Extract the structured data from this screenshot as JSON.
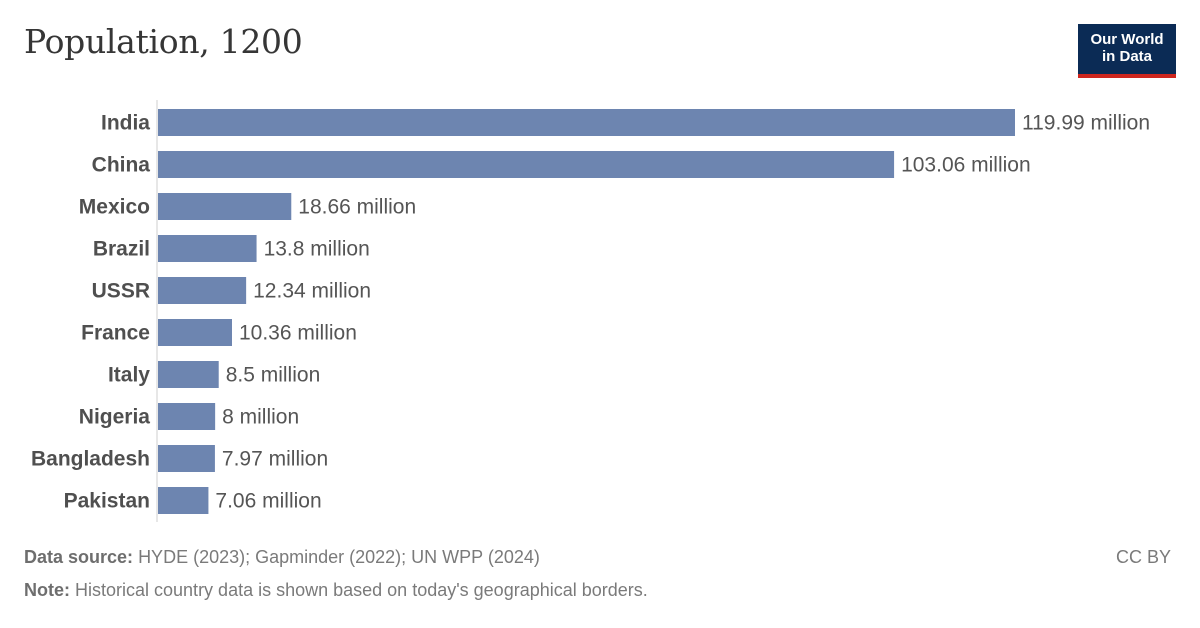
{
  "header": {
    "title": "Population, 1200"
  },
  "logo": {
    "line1": "Our World",
    "line2": "in Data"
  },
  "footer": {
    "source_label": "Data source:",
    "source_text": "HYDE (2023); Gapminder (2022); UN WPP (2024)",
    "note_label": "Note:",
    "note_text": "Historical country data is shown based on today's geographical borders.",
    "license": "CC BY"
  },
  "colors": {
    "bar": "#6d85b0",
    "logo_bg": "#0b2b55",
    "logo_accent": "#ce261e"
  },
  "chart_data": {
    "type": "bar",
    "orientation": "horizontal",
    "title": "Population, 1200",
    "categories": [
      "India",
      "China",
      "Mexico",
      "Brazil",
      "USSR",
      "France",
      "Italy",
      "Nigeria",
      "Bangladesh",
      "Pakistan"
    ],
    "values": [
      119.99,
      103.06,
      18.66,
      13.8,
      12.34,
      10.36,
      8.5,
      8,
      7.97,
      7.06
    ],
    "value_labels": [
      "119.99 million",
      "103.06 million",
      "18.66 million",
      "13.8 million",
      "12.34 million",
      "10.36 million",
      "8.5 million",
      "8 million",
      "7.97 million",
      "7.06 million"
    ],
    "unit": "million",
    "xlim": [
      0,
      119.99
    ],
    "grid": false,
    "legend": "none"
  }
}
